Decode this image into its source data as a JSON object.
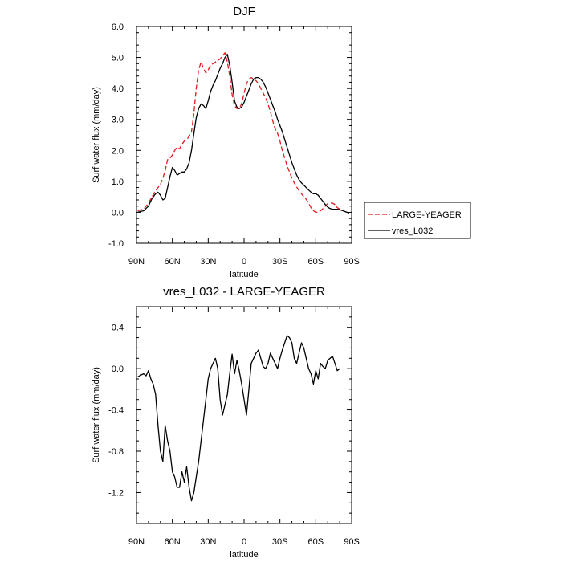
{
  "chart_data": [
    {
      "type": "line",
      "title": "DJF",
      "xlabel": "latitude",
      "ylabel": "Surf water flux (mm/day)",
      "xlim": [
        90,
        -90
      ],
      "ylim": [
        -1.0,
        6.0
      ],
      "x_ticks": [
        90,
        60,
        30,
        0,
        -30,
        -60,
        -90
      ],
      "x_tick_labels": [
        "90N",
        "60N",
        "30N",
        "0",
        "30S",
        "60S",
        "90S"
      ],
      "y_ticks": [
        -1.0,
        0.0,
        1.0,
        2.0,
        3.0,
        4.0,
        5.0,
        6.0
      ],
      "y_tick_labels": [
        "-1.0",
        "0.0",
        "1.0",
        "2.0",
        "3.0",
        "4.0",
        "5.0",
        "6.0"
      ],
      "grid": false,
      "legend": "right",
      "series": [
        {
          "name": "LARGE-YEAGER",
          "color": "#e41a1c",
          "dash": "dashed",
          "x": [
            89,
            84,
            80,
            77,
            74,
            72,
            70,
            68,
            66,
            64,
            62,
            60,
            58,
            56,
            54,
            52,
            50,
            48,
            46,
            44,
            42,
            40,
            38,
            36,
            34,
            32,
            30,
            28,
            26,
            24,
            22,
            20,
            18,
            16,
            14,
            12,
            10,
            8,
            6,
            4,
            2,
            0,
            -2,
            -4,
            -6,
            -8,
            -10,
            -12,
            -14,
            -16,
            -18,
            -20,
            -22,
            -24,
            -26,
            -28,
            -30,
            -32,
            -34,
            -36,
            -38,
            -40,
            -42,
            -44,
            -46,
            -48,
            -50,
            -52,
            -54,
            -56,
            -58,
            -60,
            -62,
            -64,
            -66,
            -68,
            -70,
            -72,
            -74,
            -76,
            -78,
            -80
          ],
          "y": [
            0.05,
            0.1,
            0.3,
            0.5,
            0.7,
            0.8,
            0.9,
            1.1,
            1.35,
            1.7,
            1.75,
            1.85,
            2.0,
            2.1,
            2.05,
            2.2,
            2.3,
            2.35,
            2.45,
            2.6,
            3.2,
            4.0,
            4.6,
            4.85,
            4.65,
            4.5,
            4.6,
            4.75,
            4.8,
            4.85,
            4.9,
            4.95,
            5.05,
            5.15,
            4.85,
            4.4,
            3.8,
            3.45,
            3.35,
            3.35,
            3.5,
            3.85,
            4.15,
            4.3,
            4.35,
            4.3,
            4.25,
            4.15,
            4.0,
            3.85,
            3.7,
            3.5,
            3.25,
            2.95,
            2.7,
            2.55,
            2.3,
            2.0,
            1.75,
            1.5,
            1.3,
            1.1,
            0.95,
            0.82,
            0.7,
            0.6,
            0.5,
            0.42,
            0.3,
            0.15,
            0.05,
            0.0,
            0.0,
            0.05,
            0.12,
            0.2,
            0.28,
            0.3,
            0.3,
            0.25,
            0.15,
            0.1
          ]
        },
        {
          "name": "vres_L032",
          "color": "#000000",
          "dash": "solid",
          "x": [
            89,
            84,
            80,
            77,
            74,
            72,
            70,
            68,
            66,
            64,
            62,
            60,
            58,
            56,
            54,
            52,
            50,
            48,
            46,
            44,
            42,
            40,
            38,
            36,
            34,
            32,
            30,
            28,
            26,
            24,
            22,
            20,
            18,
            16,
            14,
            12,
            10,
            8,
            6,
            4,
            2,
            0,
            -2,
            -4,
            -6,
            -8,
            -10,
            -12,
            -14,
            -16,
            -18,
            -20,
            -22,
            -24,
            -26,
            -28,
            -30,
            -32,
            -34,
            -36,
            -38,
            -40,
            -42,
            -44,
            -46,
            -48,
            -50,
            -52,
            -54,
            -56,
            -58,
            -60,
            -62,
            -64,
            -66,
            -68,
            -70,
            -72,
            -74,
            -76,
            -78,
            -80,
            -82,
            -86,
            -88
          ],
          "y": [
            0.0,
            0.05,
            0.2,
            0.45,
            0.6,
            0.65,
            0.55,
            0.4,
            0.45,
            0.8,
            1.15,
            1.45,
            1.35,
            1.2,
            1.25,
            1.3,
            1.3,
            1.4,
            1.6,
            2.0,
            2.55,
            3.05,
            3.35,
            3.5,
            3.45,
            3.35,
            3.6,
            3.9,
            4.1,
            4.25,
            4.45,
            4.65,
            4.8,
            5.0,
            5.1,
            4.75,
            4.2,
            3.6,
            3.4,
            3.35,
            3.4,
            3.55,
            3.75,
            3.95,
            4.15,
            4.3,
            4.35,
            4.35,
            4.3,
            4.2,
            4.05,
            3.85,
            3.65,
            3.45,
            3.25,
            3.0,
            2.8,
            2.6,
            2.35,
            2.1,
            1.85,
            1.6,
            1.4,
            1.2,
            1.05,
            0.95,
            0.88,
            0.8,
            0.72,
            0.65,
            0.6,
            0.6,
            0.55,
            0.45,
            0.35,
            0.25,
            0.17,
            0.12,
            0.1,
            0.1,
            0.1,
            0.08,
            0.06,
            0.0,
            -0.02
          ]
        }
      ]
    },
    {
      "type": "line",
      "title": "vres_L032 - LARGE-YEAGER",
      "xlabel": "latitude",
      "ylabel": "Surf water flux (mm/day)",
      "xlim": [
        90,
        -90
      ],
      "ylim": [
        -1.5,
        0.6
      ],
      "x_ticks": [
        90,
        60,
        30,
        0,
        -30,
        -60,
        -90
      ],
      "x_tick_labels": [
        "90N",
        "60N",
        "30N",
        "0",
        "30S",
        "60S",
        "90S"
      ],
      "y_ticks": [
        -1.2,
        -0.8,
        -0.4,
        0.0,
        0.4
      ],
      "y_tick_labels": [
        "-1.2",
        "-0.8",
        "-0.4",
        "0.0",
        "0.4"
      ],
      "grid": false,
      "series": [
        {
          "color": "#000000",
          "dash": "solid",
          "x": [
            89,
            86,
            84,
            82,
            80,
            78,
            76,
            74,
            72,
            70,
            68,
            66,
            64,
            62,
            60,
            58,
            56,
            54,
            52,
            50,
            48,
            46,
            44,
            42,
            40,
            38,
            36,
            34,
            32,
            30,
            28,
            26,
            24,
            22,
            20,
            18,
            16,
            14,
            12,
            10,
            8,
            6,
            4,
            2,
            0,
            -2,
            -4,
            -6,
            -8,
            -10,
            -12,
            -14,
            -16,
            -18,
            -20,
            -22,
            -24,
            -26,
            -28,
            -30,
            -32,
            -34,
            -36,
            -38,
            -40,
            -42,
            -44,
            -46,
            -48,
            -50,
            -52,
            -54,
            -56,
            -58,
            -60,
            -62,
            -64,
            -66,
            -68,
            -70,
            -72,
            -74,
            -76,
            -78,
            -80
          ],
          "y": [
            -0.08,
            -0.06,
            -0.05,
            -0.07,
            -0.02,
            -0.1,
            -0.15,
            -0.25,
            -0.55,
            -0.8,
            -0.9,
            -0.55,
            -0.7,
            -0.8,
            -1.0,
            -1.05,
            -1.15,
            -1.15,
            -1.0,
            -1.1,
            -0.95,
            -1.15,
            -1.28,
            -1.2,
            -1.05,
            -0.9,
            -0.7,
            -0.5,
            -0.3,
            -0.1,
            0.0,
            0.05,
            0.1,
            0.0,
            -0.3,
            -0.45,
            -0.35,
            -0.25,
            -0.05,
            0.14,
            -0.05,
            0.08,
            -0.02,
            -0.15,
            -0.3,
            -0.45,
            -0.2,
            0.05,
            0.1,
            0.15,
            0.18,
            0.1,
            0.02,
            0.0,
            0.05,
            0.15,
            0.1,
            0.05,
            0.0,
            0.1,
            0.18,
            0.25,
            0.32,
            0.3,
            0.25,
            0.1,
            0.05,
            0.15,
            0.25,
            0.2,
            0.1,
            0.0,
            -0.05,
            -0.15,
            -0.02,
            -0.1,
            0.05,
            0.02,
            0.0,
            0.08,
            0.1,
            0.12,
            0.05,
            -0.02,
            0.0
          ]
        }
      ]
    }
  ]
}
